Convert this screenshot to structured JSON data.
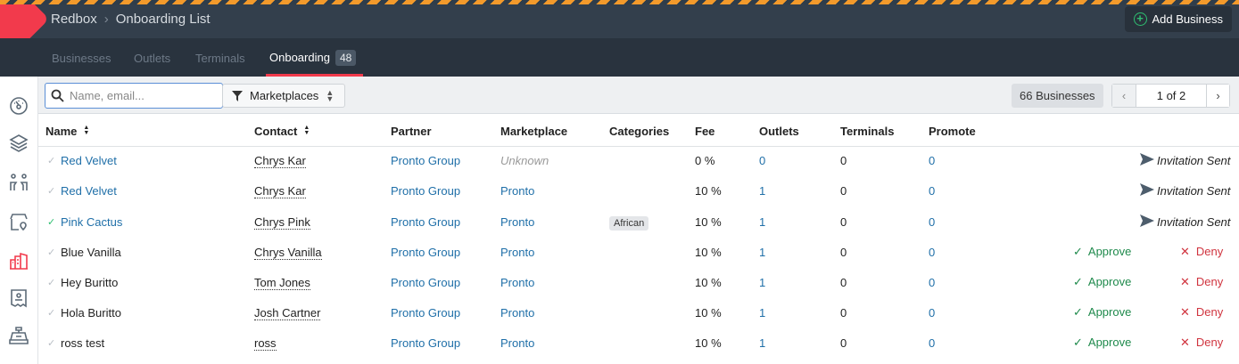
{
  "header": {
    "breadcrumb": [
      "Redbox",
      "Onboarding List"
    ],
    "add_button": "Add Business"
  },
  "tabs": [
    {
      "label": "Businesses"
    },
    {
      "label": "Outlets"
    },
    {
      "label": "Terminals"
    },
    {
      "label": "Onboarding",
      "badge": "48",
      "active": true
    }
  ],
  "toolbar": {
    "search_placeholder": "Name, email...",
    "filter_label": "Marketplaces",
    "count": "66 Businesses",
    "page": "1 of 2"
  },
  "columns": [
    "Name",
    "Contact",
    "Partner",
    "Marketplace",
    "Categories",
    "Fee",
    "Outlets",
    "Terminals",
    "Promote"
  ],
  "rows": [
    {
      "name": "Red Velvet",
      "name_link": true,
      "checked": false,
      "contact": "Chrys Kar",
      "partner": "Pronto Group",
      "marketplace": "Unknown",
      "category": "",
      "fee": "0 %",
      "outlets": "0",
      "terminals": "0",
      "promote": "0",
      "status": "Invitation Sent"
    },
    {
      "name": "Red Velvet",
      "name_link": true,
      "checked": false,
      "contact": "Chrys Kar",
      "partner": "Pronto Group",
      "marketplace": "Pronto",
      "category": "",
      "fee": "10 %",
      "outlets": "1",
      "terminals": "0",
      "promote": "0",
      "status": "Invitation Sent"
    },
    {
      "name": "Pink Cactus",
      "name_link": true,
      "checked": true,
      "contact": "Chrys Pink",
      "partner": "Pronto Group",
      "marketplace": "Pronto",
      "category": "African",
      "fee": "10 %",
      "outlets": "1",
      "terminals": "0",
      "promote": "0",
      "status": "Invitation Sent"
    },
    {
      "name": "Blue Vanilla",
      "name_link": false,
      "checked": false,
      "contact": "Chrys Vanilla",
      "partner": "Pronto Group",
      "marketplace": "Pronto",
      "category": "",
      "fee": "10 %",
      "outlets": "1",
      "terminals": "0",
      "promote": "0",
      "approve": "Approve",
      "deny": "Deny"
    },
    {
      "name": "Hey Buritto",
      "name_link": false,
      "checked": false,
      "contact": "Tom Jones",
      "partner": "Pronto Group",
      "marketplace": "Pronto",
      "category": "",
      "fee": "10 %",
      "outlets": "1",
      "terminals": "0",
      "promote": "0",
      "approve": "Approve",
      "deny": "Deny"
    },
    {
      "name": "Hola Buritto",
      "name_link": false,
      "checked": false,
      "contact": "Josh Cartner",
      "partner": "Pronto Group",
      "marketplace": "Pronto",
      "category": "",
      "fee": "10 %",
      "outlets": "1",
      "terminals": "0",
      "promote": "0",
      "approve": "Approve",
      "deny": "Deny"
    },
    {
      "name": "ross test",
      "name_link": false,
      "checked": false,
      "contact": "ross",
      "partner": "Pronto Group",
      "marketplace": "Pronto",
      "category": "",
      "fee": "10 %",
      "outlets": "1",
      "terminals": "0",
      "promote": "0",
      "approve": "Approve",
      "deny": "Deny"
    }
  ],
  "colors": {
    "accent": "#f23a4c",
    "link": "#1f6fa8",
    "approve": "#1f8a4c",
    "deny": "#d0343f",
    "header": "#333f4c"
  },
  "sidebar": {
    "icons": [
      "dashboard-icon",
      "layers-icon",
      "users-icon",
      "store-location-icon",
      "buildings-icon",
      "receipt-icon",
      "cash-register-icon"
    ],
    "active": "buildings-icon"
  }
}
